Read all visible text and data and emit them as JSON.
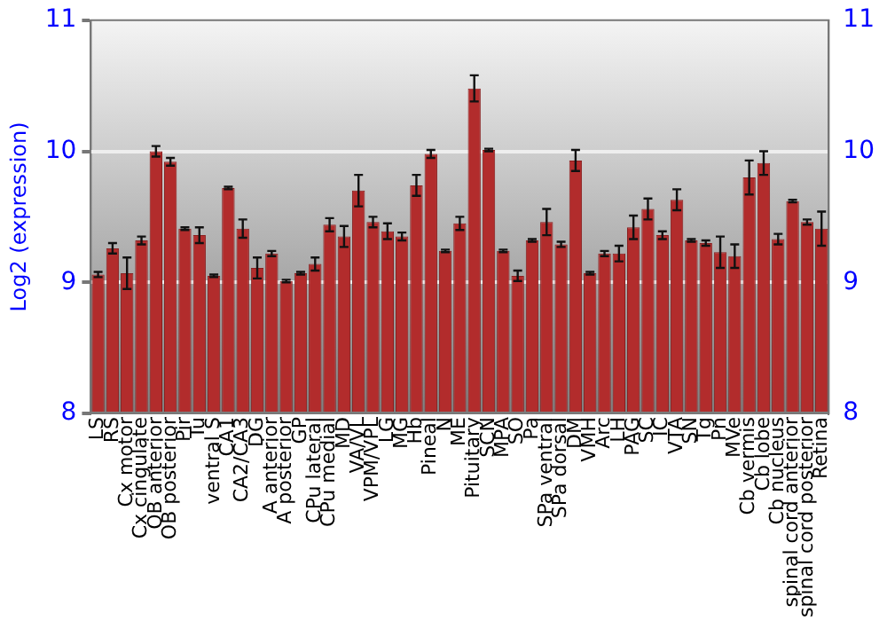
{
  "chart_data": {
    "type": "bar",
    "ylabel": "Log2 (expression)",
    "categories": [
      "LS",
      "RS",
      "Cx motor",
      "Cx cingulate",
      "OB anterior",
      "OB posterior",
      "Pir",
      "Tu",
      "ventral S",
      "CA1",
      "CA2/CA3",
      "DG",
      "A anterior",
      "A posterior",
      "GP",
      "CPu lateral",
      "CPu medial",
      "MD",
      "VA/VL",
      "VPM/VPL",
      "LG",
      "MG",
      "Hb",
      "Pineal",
      "N",
      "ME",
      "Pituitary",
      "SCN",
      "MPA",
      "SO",
      "Pa",
      "SPa ventral",
      "SPa dorsal",
      "DM",
      "VMH",
      "Arc",
      "LH",
      "PAG",
      "SC",
      "IC",
      "VTA",
      "SN",
      "Tg",
      "Pn",
      "MVe",
      "Cb vermis",
      "Cb lobe",
      "Cb nucleus",
      "spinal cord anterior",
      "spinal cord posterior",
      "Retina"
    ],
    "values": [
      9.06,
      9.26,
      9.07,
      9.32,
      10.0,
      9.92,
      9.41,
      9.36,
      9.05,
      9.72,
      9.41,
      9.11,
      9.22,
      9.01,
      9.07,
      9.14,
      9.44,
      9.35,
      9.7,
      9.46,
      9.39,
      9.35,
      9.74,
      9.98,
      9.24,
      9.45,
      10.48,
      10.01,
      9.24,
      9.05,
      9.32,
      9.46,
      9.29,
      9.93,
      9.07,
      9.22,
      9.22,
      9.42,
      9.56,
      9.36,
      9.63,
      9.32,
      9.3,
      9.23,
      9.2,
      9.8,
      9.91,
      9.33,
      9.62,
      9.46,
      9.41
    ],
    "errors": [
      0.02,
      0.04,
      0.12,
      0.03,
      0.04,
      0.03,
      0.01,
      0.06,
      0.01,
      0.01,
      0.07,
      0.08,
      0.02,
      0.01,
      0.01,
      0.05,
      0.05,
      0.08,
      0.12,
      0.04,
      0.06,
      0.03,
      0.08,
      0.03,
      0.01,
      0.05,
      0.1,
      0.01,
      0.01,
      0.04,
      0.01,
      0.1,
      0.02,
      0.08,
      0.01,
      0.02,
      0.06,
      0.09,
      0.08,
      0.03,
      0.08,
      0.01,
      0.02,
      0.12,
      0.09,
      0.13,
      0.09,
      0.04,
      0.01,
      0.02,
      0.13
    ],
    "color": "#b22c2c",
    "ylim": [
      8,
      11
    ],
    "yticks": [
      8,
      9,
      10,
      11
    ],
    "y2lim": [
      8,
      11
    ],
    "y2ticks": [
      8,
      9,
      10,
      11
    ],
    "grid": "y",
    "legend": false
  }
}
